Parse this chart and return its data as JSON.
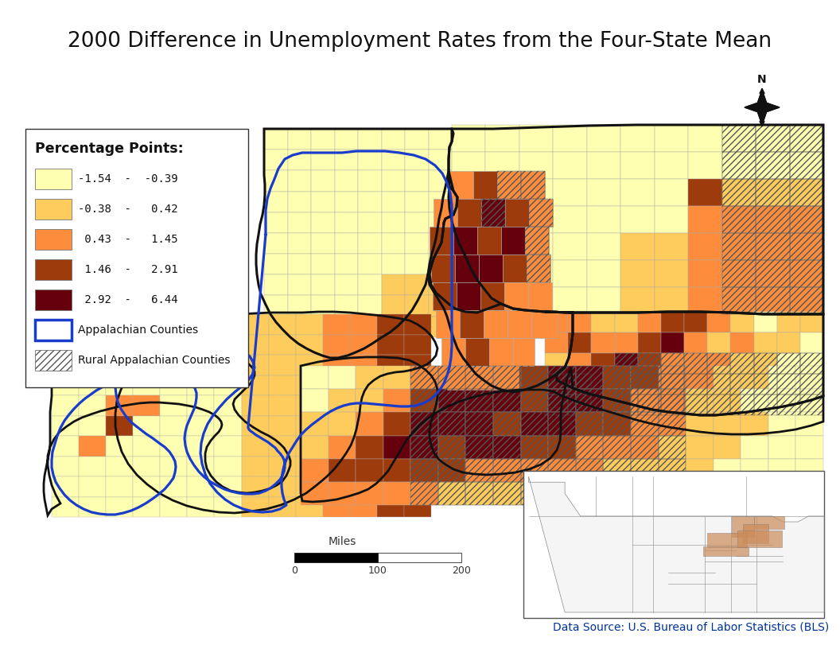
{
  "title": "2000 Difference in Unemployment Rates from the Four-State Mean",
  "title_fontsize": 19,
  "title_color": "#111111",
  "background_color": "#ffffff",
  "legend_title": "Percentage Points:",
  "legend_colors": [
    "#ffffb2",
    "#fecc5c",
    "#fd8d3c",
    "#9e3b0c",
    "#67000d"
  ],
  "legend_labels": [
    "-1.54  -  -0.39",
    "-0.38  -   0.42",
    " 0.43  -   1.45",
    " 1.46  -   2.91",
    " 2.92  -   6.44"
  ],
  "appalachian_color": "#1a3ccc",
  "hatch_color": "#333333",
  "scale_bar_label": "Miles",
  "scale_bar_values": [
    "0",
    "100",
    "200"
  ],
  "data_source": "Data Source: U.S. Bureau of Labor Statistics (BLS)",
  "data_source_color": "#003399",
  "data_source_fontsize": 10,
  "county_edge_color": "#aaaaaa",
  "state_edge_color": "#111111"
}
